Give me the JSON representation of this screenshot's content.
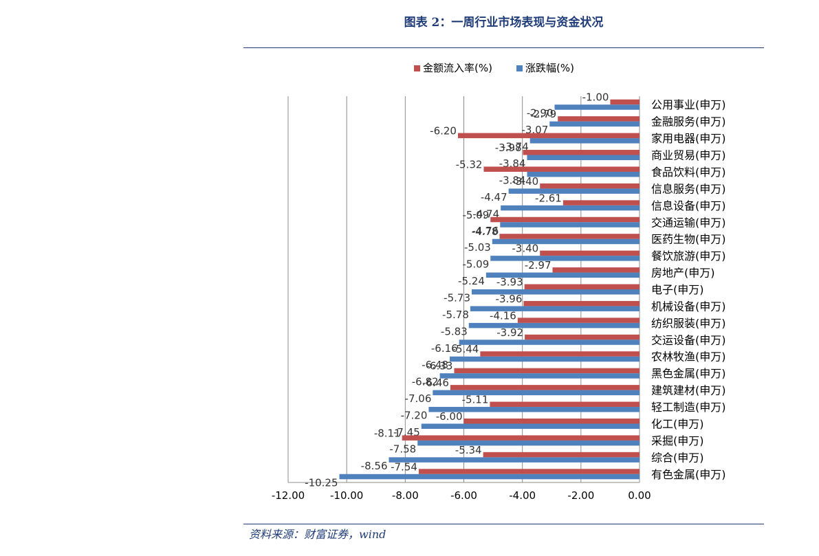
{
  "title": "图表 2：一周行业市场表现与资金状况",
  "source": "资料来源：财富证券，wind",
  "chart_data": {
    "type": "bar",
    "orientation": "horizontal",
    "legend_position": "top",
    "grid": true,
    "xlim": [
      -12,
      0
    ],
    "x_ticks": [
      "-12.00",
      "-10.00",
      "-8.00",
      "-6.00",
      "-4.00",
      "-2.00",
      "0.00"
    ],
    "categories": [
      "公用事业(申万)",
      "金融服务(申万)",
      "家用电器(申万)",
      "商业贸易(申万)",
      "食品饮料(申万)",
      "信息服务(申万)",
      "信息设备(申万)",
      "交通运输(申万)",
      "医药生物(申万)",
      "餐饮旅游(申万)",
      "房地产(申万)",
      "电子(申万)",
      "机械设备(申万)",
      "纺织服装(申万)",
      "交运设备(申万)",
      "农林牧渔(申万)",
      "黑色金属(申万)",
      "建筑建材(申万)",
      "轻工制造(申万)",
      "化工(申万)",
      "采掘(申万)",
      "综合(申万)",
      "有色金属(申万)"
    ],
    "series": [
      {
        "name": "金额流入率(%)",
        "color": "#c0504d",
        "values": [
          -1.0,
          -2.79,
          -6.2,
          -3.98,
          -5.32,
          -3.4,
          -2.61,
          -5.09,
          -4.78,
          -3.4,
          -2.97,
          -3.93,
          -3.96,
          -4.16,
          -3.92,
          -5.44,
          -6.33,
          -6.46,
          -5.11,
          -6.0,
          -8.11,
          -5.34,
          -7.54
        ]
      },
      {
        "name": "涨跌幅(%)",
        "color": "#4f81bd",
        "values": [
          -2.9,
          -3.07,
          -3.74,
          -3.84,
          -3.84,
          -4.47,
          -4.74,
          -4.76,
          -5.03,
          -5.09,
          -5.24,
          -5.73,
          -5.78,
          -5.83,
          -6.16,
          -6.48,
          -6.82,
          -7.06,
          -7.2,
          -7.45,
          -7.58,
          -8.56,
          -10.25
        ]
      }
    ]
  }
}
